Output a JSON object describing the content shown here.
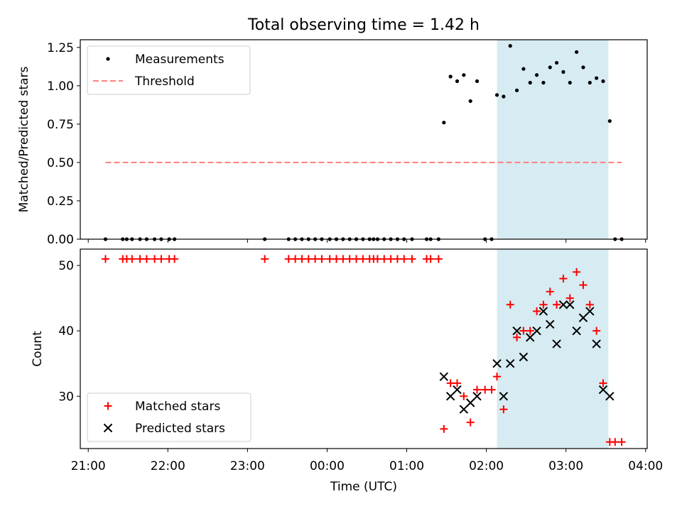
{
  "chart_data": {
    "title": "Total observing time = 1.42 h",
    "x_axis": {
      "label": "Time (UTC)",
      "ticks": [
        "21:00",
        "22:00",
        "23:00",
        "00:00",
        "01:00",
        "02:00",
        "03:00",
        "04:00"
      ],
      "tick_hours": [
        0,
        1,
        2,
        3,
        4,
        5,
        6,
        7
      ],
      "range_hours_since_21": [
        -0.1,
        7.02
      ]
    },
    "highlight_span": {
      "start": "02:08",
      "end": "03:32",
      "color": "#add8e6"
    },
    "panels": [
      {
        "type": "scatter",
        "ylabel": "Matched/Predicted stars",
        "ylim": [
          0,
          1.3
        ],
        "yticks": [
          "0.00",
          "0.25",
          "0.50",
          "0.75",
          "1.00",
          "1.25"
        ],
        "yticks_values": [
          0,
          0.25,
          0.5,
          0.75,
          1.0,
          1.25
        ],
        "legend": [
          "Measurements",
          "Threshold"
        ],
        "legend_position": "upper left",
        "threshold": {
          "value": 0.5,
          "x_start": "21:13",
          "x_end": "03:42",
          "color": "#ff7f7f",
          "style": "dashed"
        },
        "series": [
          {
            "name": "Measurements",
            "marker": "dot",
            "color": "#000000",
            "points": [
              [
                "21:13",
                0
              ],
              [
                "21:26",
                0
              ],
              [
                "21:29",
                0
              ],
              [
                "21:33",
                0
              ],
              [
                "21:39",
                0
              ],
              [
                "21:44",
                0
              ],
              [
                "21:50",
                0
              ],
              [
                "21:55",
                0
              ],
              [
                "22:01",
                0
              ],
              [
                "22:05",
                0
              ],
              [
                "23:13",
                0
              ],
              [
                "23:31",
                0
              ],
              [
                "23:36",
                0
              ],
              [
                "23:41",
                0
              ],
              [
                "23:46",
                0
              ],
              [
                "23:51",
                0
              ],
              [
                "23:56",
                0
              ],
              [
                "00:02",
                0
              ],
              [
                "00:07",
                0
              ],
              [
                "00:12",
                0
              ],
              [
                "00:17",
                0
              ],
              [
                "00:22",
                0
              ],
              [
                "00:27",
                0
              ],
              [
                "00:32",
                0
              ],
              [
                "00:35",
                0
              ],
              [
                "00:38",
                0
              ],
              [
                "00:43",
                0
              ],
              [
                "00:48",
                0
              ],
              [
                "00:53",
                0
              ],
              [
                "00:58",
                0
              ],
              [
                "01:04",
                0
              ],
              [
                "01:15",
                0
              ],
              [
                "01:18",
                0
              ],
              [
                "01:24",
                0
              ],
              [
                "01:28",
                0.76
              ],
              [
                "01:33",
                1.06
              ],
              [
                "01:38",
                1.03
              ],
              [
                "01:43",
                1.07
              ],
              [
                "01:48",
                0.9
              ],
              [
                "01:53",
                1.03
              ],
              [
                "01:59",
                0
              ],
              [
                "02:04",
                0
              ],
              [
                "02:08",
                0.94
              ],
              [
                "02:13",
                0.93
              ],
              [
                "02:18",
                1.26
              ],
              [
                "02:23",
                0.97
              ],
              [
                "02:28",
                1.11
              ],
              [
                "02:33",
                1.02
              ],
              [
                "02:38",
                1.07
              ],
              [
                "02:43",
                1.02
              ],
              [
                "02:48",
                1.12
              ],
              [
                "02:53",
                1.15
              ],
              [
                "02:58",
                1.09
              ],
              [
                "03:03",
                1.02
              ],
              [
                "03:08",
                1.22
              ],
              [
                "03:13",
                1.12
              ],
              [
                "03:18",
                1.02
              ],
              [
                "03:23",
                1.05
              ],
              [
                "03:28",
                1.03
              ],
              [
                "03:33",
                0.77
              ],
              [
                "03:37",
                0
              ],
              [
                "03:42",
                0
              ]
            ]
          }
        ]
      },
      {
        "type": "scatter",
        "ylabel": "Count",
        "ylim": [
          22,
          52.5
        ],
        "yticks": [
          "30",
          "40",
          "50"
        ],
        "yticks_values": [
          30,
          40,
          50
        ],
        "legend": [
          "Matched stars",
          "Predicted stars"
        ],
        "legend_position": "lower left",
        "series": [
          {
            "name": "Matched stars",
            "marker": "plus",
            "color": "#ff0000",
            "points": [
              [
                "21:13",
                51
              ],
              [
                "21:26",
                51
              ],
              [
                "21:29",
                51
              ],
              [
                "21:33",
                51
              ],
              [
                "21:39",
                51
              ],
              [
                "21:44",
                51
              ],
              [
                "21:50",
                51
              ],
              [
                "21:55",
                51
              ],
              [
                "22:01",
                51
              ],
              [
                "22:05",
                51
              ],
              [
                "23:13",
                51
              ],
              [
                "23:31",
                51
              ],
              [
                "23:36",
                51
              ],
              [
                "23:41",
                51
              ],
              [
                "23:46",
                51
              ],
              [
                "23:51",
                51
              ],
              [
                "23:56",
                51
              ],
              [
                "00:02",
                51
              ],
              [
                "00:07",
                51
              ],
              [
                "00:12",
                51
              ],
              [
                "00:17",
                51
              ],
              [
                "00:22",
                51
              ],
              [
                "00:27",
                51
              ],
              [
                "00:32",
                51
              ],
              [
                "00:35",
                51
              ],
              [
                "00:38",
                51
              ],
              [
                "00:43",
                51
              ],
              [
                "00:48",
                51
              ],
              [
                "00:53",
                51
              ],
              [
                "00:58",
                51
              ],
              [
                "01:04",
                51
              ],
              [
                "01:15",
                51
              ],
              [
                "01:18",
                51
              ],
              [
                "01:24",
                51
              ],
              [
                "01:28",
                25
              ],
              [
                "01:33",
                32
              ],
              [
                "01:38",
                32
              ],
              [
                "01:43",
                30
              ],
              [
                "01:48",
                26
              ],
              [
                "01:53",
                31
              ],
              [
                "01:59",
                31
              ],
              [
                "02:04",
                31
              ],
              [
                "02:08",
                33
              ],
              [
                "02:13",
                28
              ],
              [
                "02:18",
                44
              ],
              [
                "02:23",
                39
              ],
              [
                "02:28",
                40
              ],
              [
                "02:33",
                40
              ],
              [
                "02:38",
                43
              ],
              [
                "02:43",
                44
              ],
              [
                "02:48",
                46
              ],
              [
                "02:53",
                44
              ],
              [
                "02:58",
                48
              ],
              [
                "03:03",
                45
              ],
              [
                "03:08",
                49
              ],
              [
                "03:13",
                47
              ],
              [
                "03:18",
                44
              ],
              [
                "03:23",
                40
              ],
              [
                "03:28",
                32
              ],
              [
                "03:33",
                23
              ],
              [
                "03:37",
                23
              ],
              [
                "03:42",
                23
              ]
            ]
          },
          {
            "name": "Predicted stars",
            "marker": "x",
            "color": "#000000",
            "points": [
              [
                "01:28",
                33
              ],
              [
                "01:33",
                30
              ],
              [
                "01:38",
                31
              ],
              [
                "01:43",
                28
              ],
              [
                "01:48",
                29
              ],
              [
                "01:53",
                30
              ],
              [
                "02:08",
                35
              ],
              [
                "02:13",
                30
              ],
              [
                "02:18",
                35
              ],
              [
                "02:23",
                40
              ],
              [
                "02:28",
                36
              ],
              [
                "02:33",
                39
              ],
              [
                "02:38",
                40
              ],
              [
                "02:43",
                43
              ],
              [
                "02:48",
                41
              ],
              [
                "02:53",
                38
              ],
              [
                "02:58",
                44
              ],
              [
                "03:03",
                44
              ],
              [
                "03:08",
                40
              ],
              [
                "03:13",
                42
              ],
              [
                "03:18",
                43
              ],
              [
                "03:23",
                38
              ],
              [
                "03:28",
                31
              ],
              [
                "03:33",
                30
              ]
            ]
          }
        ]
      }
    ]
  }
}
